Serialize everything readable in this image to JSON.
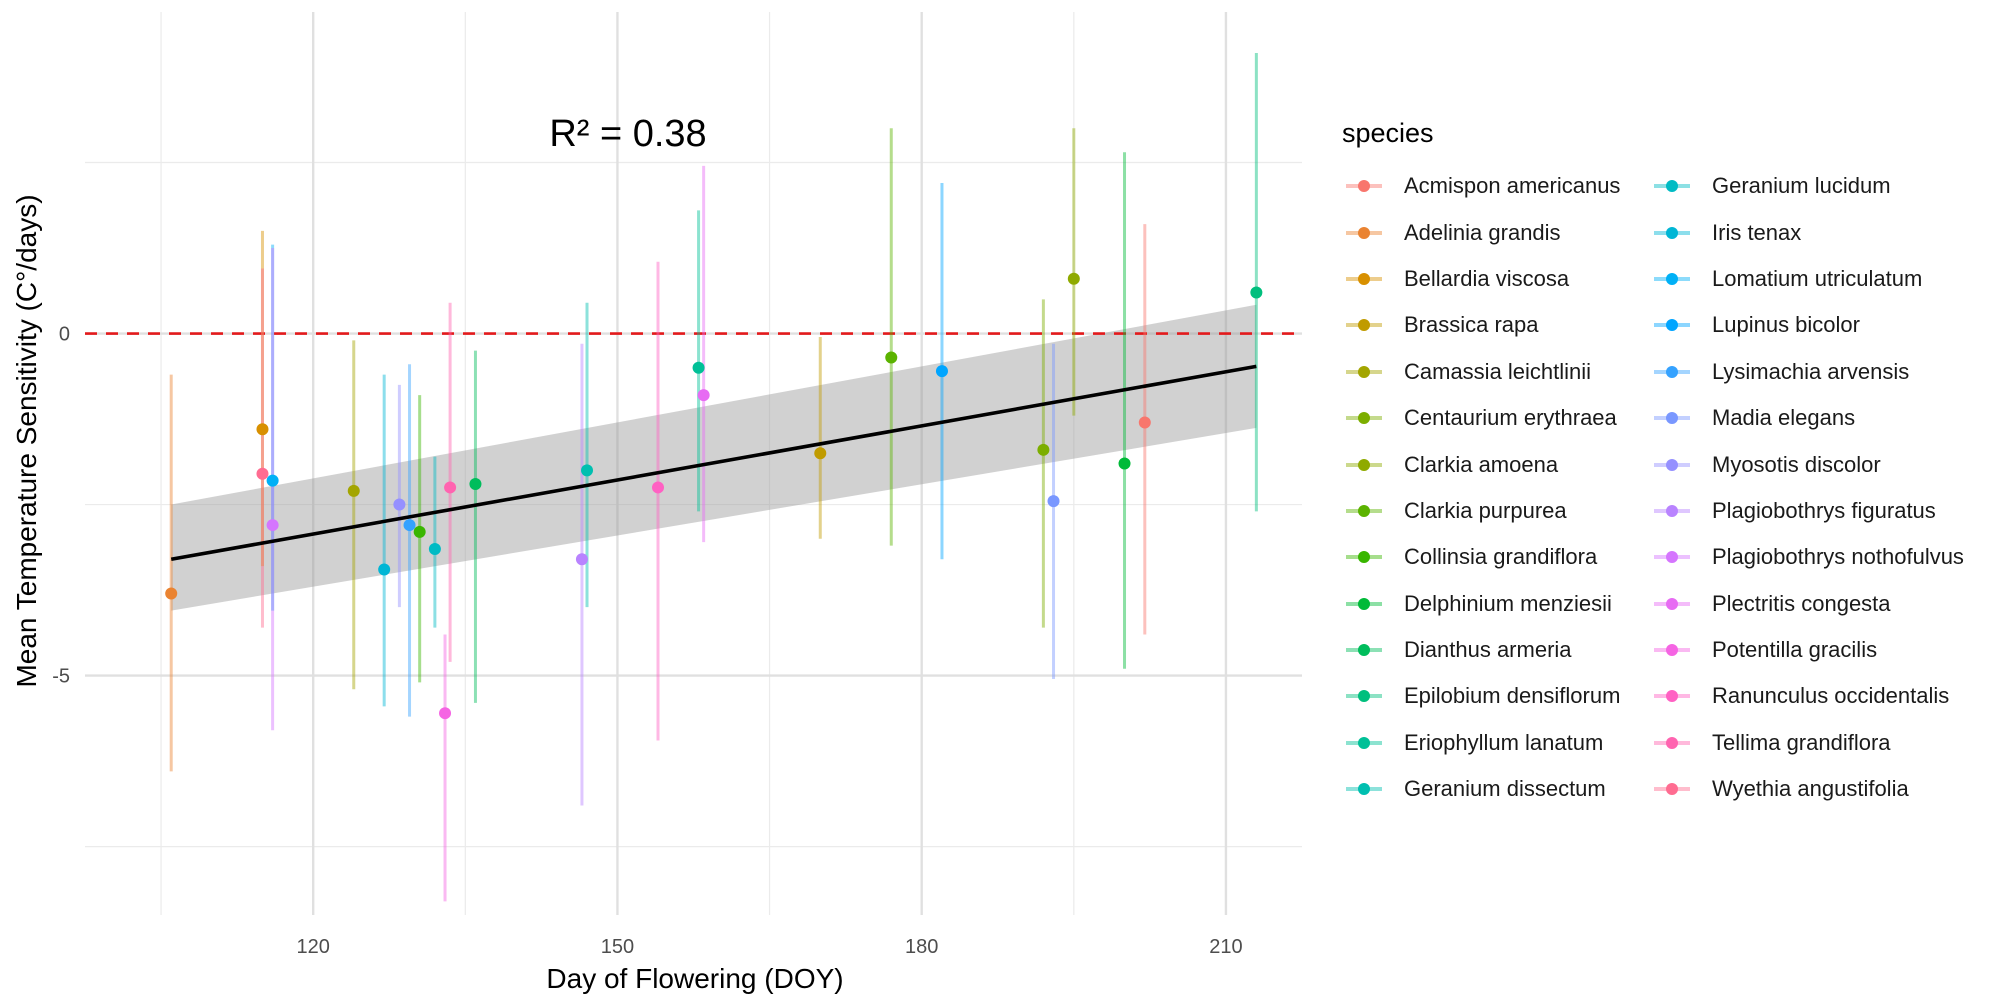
{
  "chart_data": {
    "type": "scatter",
    "title": "",
    "annotation": "R² = 0.38",
    "xlabel": "Day of Flowering (DOY)",
    "ylabel": "Mean Temperature Sensitivity (C°/days)",
    "xlim": [
      97.5,
      217.5
    ],
    "ylim": [
      -8.5,
      4.7
    ],
    "x_ticks": [
      120,
      150,
      180,
      210
    ],
    "x_tick_labels": [
      "120",
      "150",
      "180",
      "210"
    ],
    "y_ticks": [
      -5,
      0
    ],
    "y_tick_labels": [
      "-5",
      "0"
    ],
    "grid": true,
    "reference_line": {
      "y": 0,
      "color": "#e31a1c",
      "style": "dashed"
    },
    "regression": {
      "x_start": 106,
      "y_start": -3.3,
      "x_end": 213,
      "y_end": -0.48,
      "ci_start": [
        -4.05,
        -2.5
      ],
      "ci_end": [
        -1.38,
        0.42
      ]
    },
    "legend_title": "species",
    "legend_position": "right",
    "series": [
      {
        "name": "Acmispon americanus",
        "color": "#F8766D",
        "x": 202,
        "y": -1.3,
        "ymin": -4.4,
        "ymax": 1.6
      },
      {
        "name": "Adelinia grandis",
        "color": "#EA8331",
        "x": 106,
        "y": -3.8,
        "ymin": -6.4,
        "ymax": -0.6
      },
      {
        "name": "Bellardia viscosa",
        "color": "#D89000",
        "x": 115,
        "y": -1.4,
        "ymin": -3.4,
        "ymax": 1.5
      },
      {
        "name": "Brassica rapa",
        "color": "#C09B00",
        "x": 170,
        "y": -1.75,
        "ymin": -3.0,
        "ymax": -0.05
      },
      {
        "name": "Camassia leichtlinii",
        "color": "#A3A500",
        "x": 124,
        "y": -2.3,
        "ymin": -5.2,
        "ymax": -0.1
      },
      {
        "name": "Centaurium erythraea",
        "color": "#7CAE00",
        "x": 192,
        "y": -1.7,
        "ymin": -4.3,
        "ymax": 0.5
      },
      {
        "name": "Clarkia amoena",
        "color": "#8FAA00",
        "x": 195,
        "y": 0.8,
        "ymin": -1.2,
        "ymax": 3.0
      },
      {
        "name": "Clarkia purpurea",
        "color": "#5BB300",
        "x": 177,
        "y": -0.35,
        "ymin": -3.1,
        "ymax": 3.0
      },
      {
        "name": "Collinsia grandiflora",
        "color": "#39B600",
        "x": 130.5,
        "y": -2.9,
        "ymin": -5.1,
        "ymax": -0.9
      },
      {
        "name": "Delphinium menziesii",
        "color": "#00BA38",
        "x": 200,
        "y": -1.9,
        "ymin": -4.9,
        "ymax": 2.65
      },
      {
        "name": "Dianthus armeria",
        "color": "#00BD5C",
        "x": 136,
        "y": -2.2,
        "ymin": -5.4,
        "ymax": -0.25
      },
      {
        "name": "Epilobium densiflorum",
        "color": "#00BF7D",
        "x": 213,
        "y": 0.6,
        "ymin": -2.6,
        "ymax": 4.1
      },
      {
        "name": "Eriophyllum lanatum",
        "color": "#00C097",
        "x": 158,
        "y": -0.5,
        "ymin": -2.6,
        "ymax": 1.8
      },
      {
        "name": "Geranium dissectum",
        "color": "#00BFB0",
        "x": 147,
        "y": -2.0,
        "ymin": -4.0,
        "ymax": 0.45
      },
      {
        "name": "Geranium lucidum",
        "color": "#00BBC4",
        "x": 132,
        "y": -3.15,
        "ymin": -4.3,
        "ymax": -1.8
      },
      {
        "name": "Iris tenax",
        "color": "#00B6D5",
        "x": 127,
        "y": -3.45,
        "ymin": -5.45,
        "ymax": -0.6
      },
      {
        "name": "Lomatium utriculatum",
        "color": "#00B0F6",
        "x": 116,
        "y": -2.15,
        "ymin": -4.05,
        "ymax": 1.3
      },
      {
        "name": "Lupinus bicolor",
        "color": "#00A5FF",
        "x": 182,
        "y": -0.55,
        "ymin": -3.3,
        "ymax": 2.2
      },
      {
        "name": "Lysimachia arvensis",
        "color": "#35A2FF",
        "x": 129.5,
        "y": -2.8,
        "ymin": -5.6,
        "ymax": -0.45
      },
      {
        "name": "Madia elegans",
        "color": "#7997FF",
        "x": 193,
        "y": -2.45,
        "ymin": -5.05,
        "ymax": -0.15
      },
      {
        "name": "Myosotis discolor",
        "color": "#9590FF",
        "x": 128.5,
        "y": -2.5,
        "ymin": -4.0,
        "ymax": -0.75
      },
      {
        "name": "Plagiobothrys figuratus",
        "color": "#B983FF",
        "x": 146.5,
        "y": -3.3,
        "ymin": -6.9,
        "ymax": -0.15
      },
      {
        "name": "Plagiobothrys nothofulvus",
        "color": "#D575FE",
        "x": 116,
        "y": -2.8,
        "ymin": -5.8,
        "ymax": 1.25
      },
      {
        "name": "Plectritis congesta",
        "color": "#E76BF3",
        "x": 158.5,
        "y": -0.9,
        "ymin": -3.05,
        "ymax": 2.45
      },
      {
        "name": "Potentilla gracilis",
        "color": "#F564E3",
        "x": 133,
        "y": -5.55,
        "ymin": -8.3,
        "ymax": -4.4
      },
      {
        "name": "Ranunculus occidentalis",
        "color": "#FF61C3",
        "x": 154,
        "y": -2.25,
        "ymin": -5.95,
        "ymax": 1.05
      },
      {
        "name": "Tellima grandiflora",
        "color": "#FF64B0",
        "x": 133.5,
        "y": -2.25,
        "ymin": -4.8,
        "ymax": 0.45
      },
      {
        "name": "Wyethia angustifolia",
        "color": "#FF6C91",
        "x": 115,
        "y": -2.05,
        "ymin": -4.3,
        "ymax": 0.95
      }
    ]
  }
}
